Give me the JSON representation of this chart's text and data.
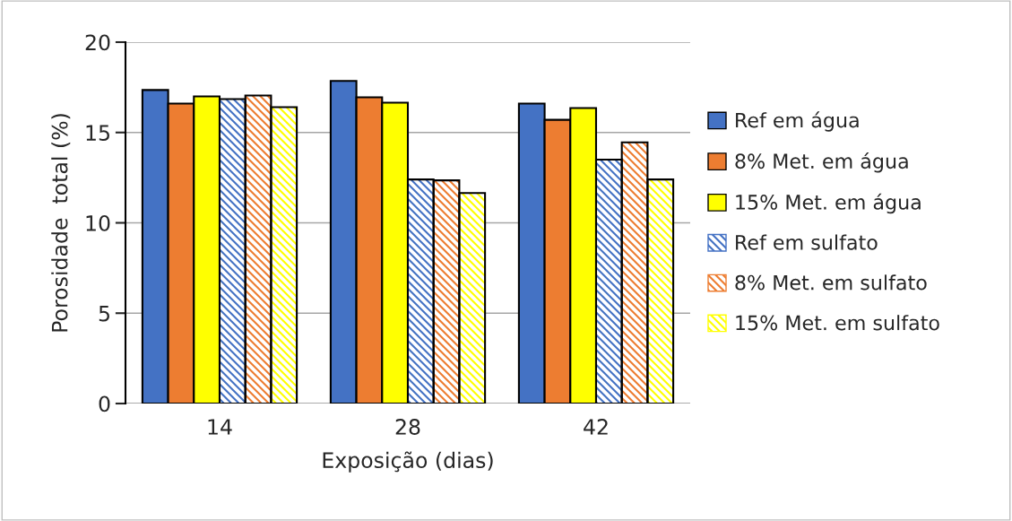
{
  "chart_data": {
    "type": "bar",
    "xlabel": "Exposição (dias)",
    "ylabel": "Porosidade  total (%)",
    "categories": [
      "14",
      "28",
      "42"
    ],
    "series": [
      {
        "name": "Ref em água",
        "color": "#4472c4",
        "values": [
          17.35,
          17.85,
          16.6
        ]
      },
      {
        "name": "8% Met. em água",
        "color": "#ed7d31",
        "values": [
          16.6,
          16.95,
          15.7
        ]
      },
      {
        "name": "15% Met. em água",
        "color": "#ffff00",
        "values": [
          17.0,
          16.65,
          16.35
        ]
      },
      {
        "name": "Ref em sulfato",
        "color": "#4472c4",
        "values": [
          16.85,
          12.4,
          13.5
        ]
      },
      {
        "name": "8% Met. em sulfato",
        "color": "#ed7d31",
        "values": [
          17.05,
          12.35,
          14.45
        ]
      },
      {
        "name": "15% Met. em sulfato",
        "color": "#ffff00",
        "values": [
          16.4,
          11.65,
          12.4
        ]
      }
    ],
    "ylim": [
      0,
      20
    ],
    "yticks": [
      0,
      5,
      10,
      15,
      20
    ],
    "grid": "y",
    "legend": "right"
  }
}
